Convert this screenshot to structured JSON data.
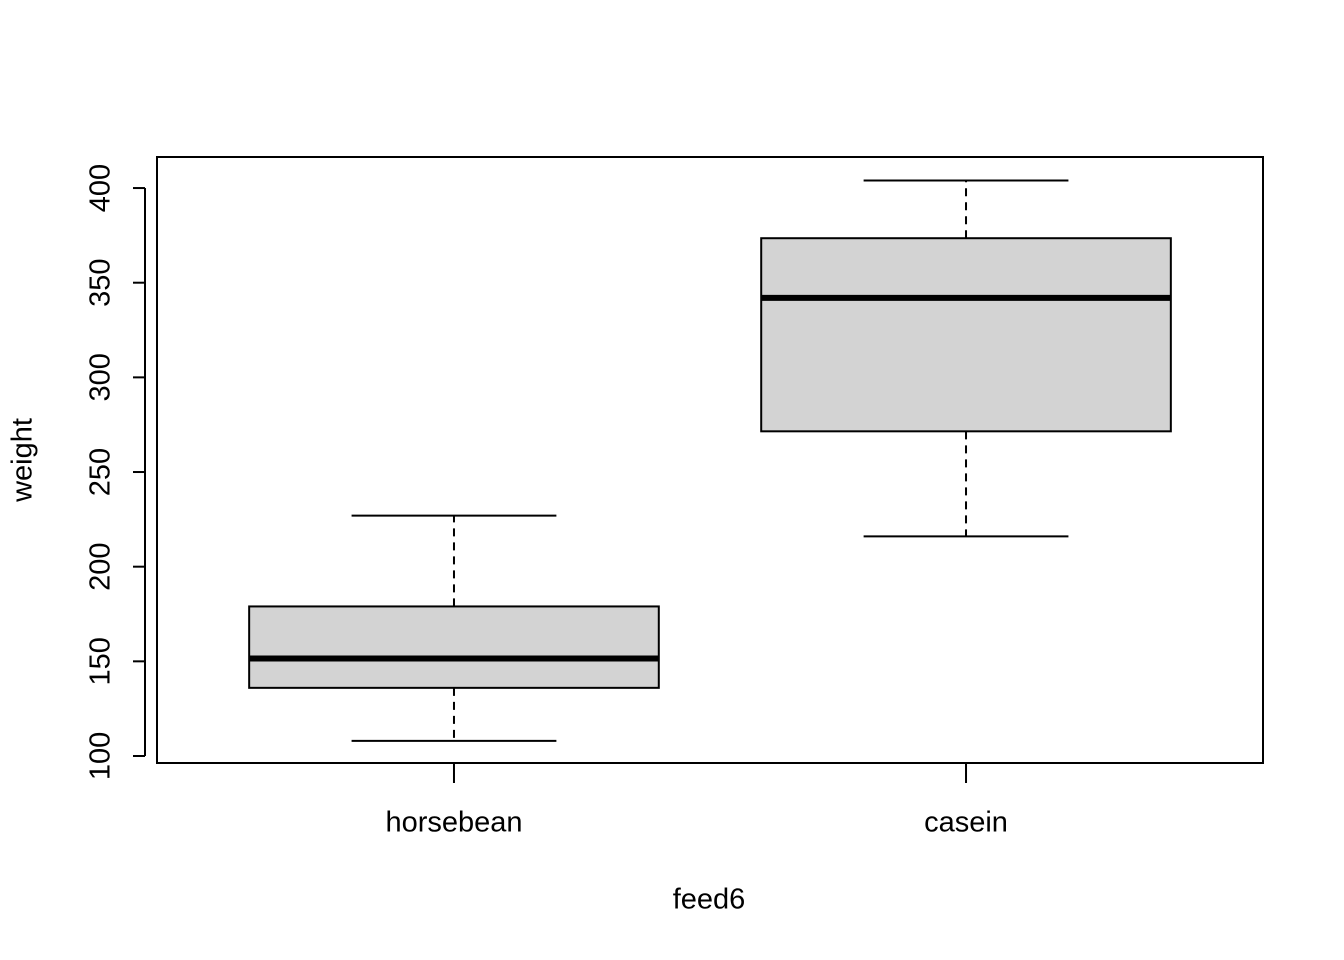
{
  "chart_data": {
    "type": "box",
    "x_label": "feed6",
    "y_label": "weight",
    "categories": [
      "horsebean",
      "casein"
    ],
    "min": [
      108,
      216
    ],
    "q1": [
      136,
      271.5
    ],
    "median": [
      151.5,
      342
    ],
    "q3": [
      179,
      373.5
    ],
    "max": [
      227,
      404
    ],
    "color": "#d3d3d3",
    "ylim": [
      96.3,
      416.4
    ],
    "yticks": [
      100,
      150,
      200,
      250,
      300,
      350,
      400
    ]
  }
}
